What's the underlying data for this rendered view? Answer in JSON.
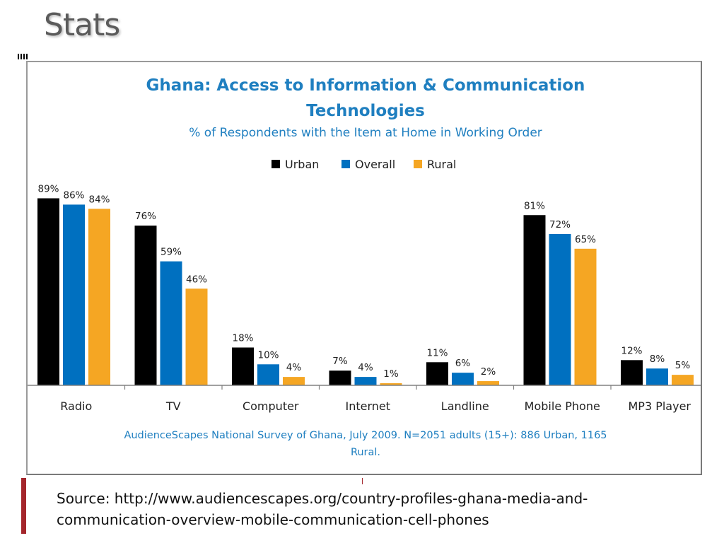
{
  "slide": {
    "title": "Stats",
    "source_line1": "Source: http://www.audiencescapes.org/country-profiles-ghana-media-and-",
    "source_line2": "communication-overview-mobile-communication-cell-phones"
  },
  "chart_data": {
    "type": "bar",
    "title_line1": "Ghana: Access to Information & Communication",
    "title_line2": "Technologies",
    "subtitle": "% of Respondents with the Item at Home in Working Order",
    "footnote_line1": "AudienceScapes National Survey of Ghana, July 2009. N=2051 adults (15+): 886 Urban, 1165",
    "footnote_line2": "Rural.",
    "categories": [
      "Radio",
      "TV",
      "Computer",
      "Internet",
      "Landline",
      "Mobile Phone",
      "MP3 Player"
    ],
    "series": [
      {
        "name": "Urban",
        "color": "#000000",
        "values": [
          89,
          76,
          18,
          7,
          11,
          81,
          12
        ]
      },
      {
        "name": "Overall",
        "color": "#0070c0",
        "values": [
          86,
          59,
          10,
          4,
          6,
          72,
          8
        ]
      },
      {
        "name": "Rural",
        "color": "#f5a623",
        "values": [
          84,
          46,
          4,
          1,
          2,
          65,
          5
        ]
      }
    ],
    "ylim": [
      0,
      100
    ],
    "legend": "top-center",
    "grid": false,
    "title_color": "#1f7fc0",
    "label_suffix": "%"
  }
}
